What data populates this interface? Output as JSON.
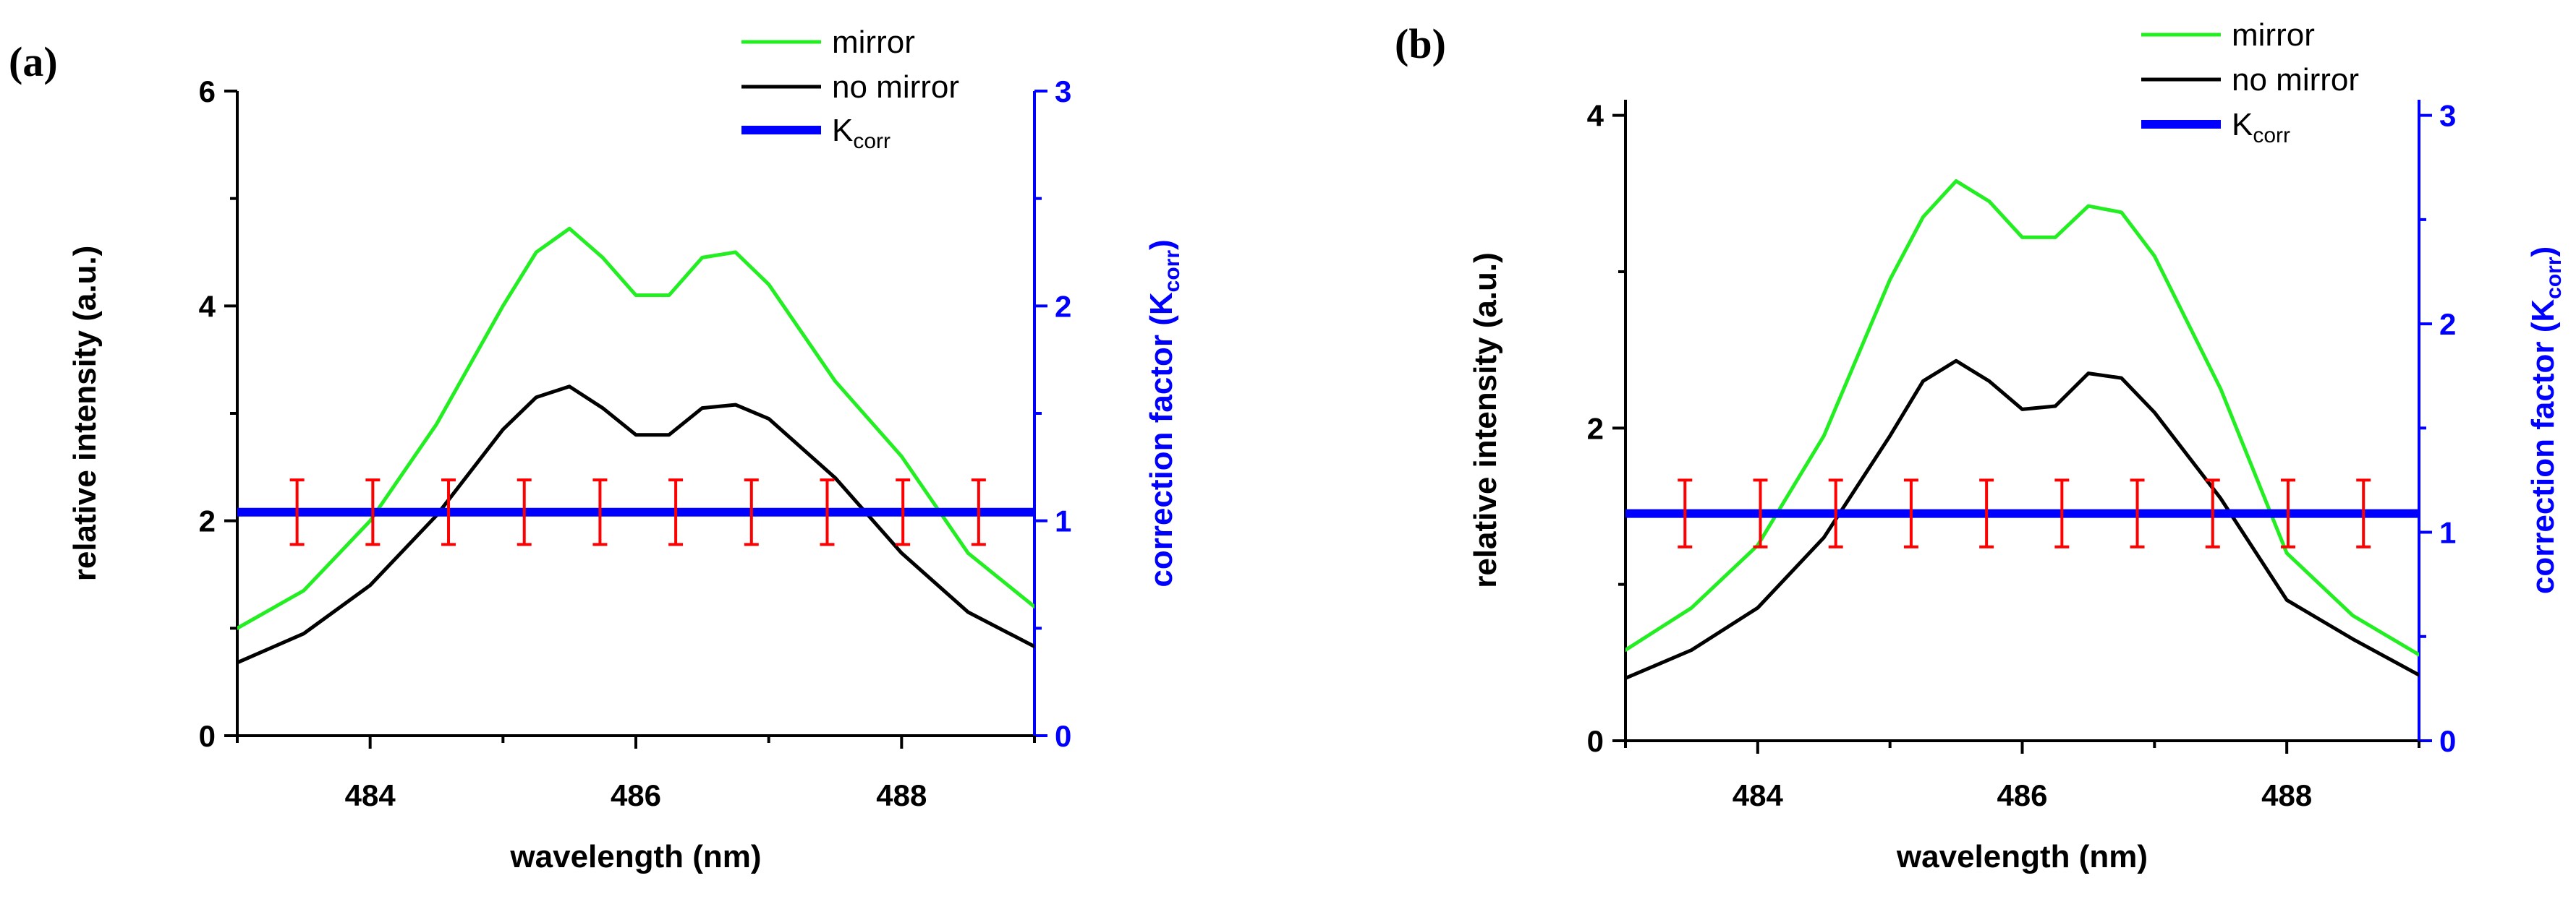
{
  "chart_data": [
    {
      "panel": "(a)",
      "type": "line",
      "xlabel": "wavelength (nm)",
      "ylabel": "relative intensity (a.u.)",
      "y2label_main": "correction factor (K",
      "y2label_sub": "corr",
      "y2label_end": ")",
      "xlim": [
        483,
        489
      ],
      "ylim": [
        0,
        6
      ],
      "y2lim": [
        0,
        3
      ],
      "xticks": [
        484,
        486,
        488
      ],
      "xtick_labels": [
        "484",
        "486",
        "488"
      ],
      "yticks": [
        0,
        2,
        4,
        6
      ],
      "ytick_labels": [
        "0",
        "2",
        "4",
        "6"
      ],
      "y2ticks": [
        0,
        1,
        2,
        3
      ],
      "y2tick_labels": [
        "0",
        "1",
        "2",
        "3"
      ],
      "legend": {
        "position": "top-right",
        "entries": [
          {
            "label": "mirror",
            "sub": "",
            "color": "#22ee22"
          },
          {
            "label": "no mirror",
            "sub": "",
            "color": "#000000"
          },
          {
            "label": "K",
            "sub": "corr",
            "color": "#0000ff"
          }
        ]
      },
      "series": [
        {
          "name": "mirror",
          "color": "#22ee22",
          "axis": "left",
          "x": [
            483.0,
            483.5,
            484.0,
            484.5,
            485.0,
            485.25,
            485.5,
            485.75,
            486.0,
            486.25,
            486.5,
            486.75,
            487.0,
            487.5,
            488.0,
            488.5,
            489.0
          ],
          "y": [
            1.0,
            1.35,
            2.0,
            2.9,
            4.0,
            4.5,
            4.72,
            4.45,
            4.1,
            4.1,
            4.45,
            4.5,
            4.2,
            3.3,
            2.6,
            1.7,
            1.2
          ]
        },
        {
          "name": "no mirror",
          "color": "#000000",
          "axis": "left",
          "x": [
            483.0,
            483.5,
            484.0,
            484.5,
            485.0,
            485.25,
            485.5,
            485.75,
            486.0,
            486.25,
            486.5,
            486.75,
            487.0,
            487.5,
            488.0,
            488.5,
            489.0
          ],
          "y": [
            0.68,
            0.95,
            1.4,
            2.05,
            2.85,
            3.15,
            3.25,
            3.05,
            2.8,
            2.8,
            3.05,
            3.08,
            2.95,
            2.4,
            1.7,
            1.15,
            0.83
          ]
        },
        {
          "name": "Kcorr",
          "color": "#0000ff",
          "axis": "right",
          "x": [
            483.0,
            489.0
          ],
          "y": [
            1.04,
            1.04
          ]
        }
      ],
      "error_bars": {
        "color": "#ff0000",
        "axis": "right",
        "x": [
          483.45,
          484.02,
          484.59,
          485.16,
          485.73,
          486.3,
          486.87,
          487.44,
          488.01,
          488.58
        ],
        "y": 1.04,
        "err": 0.15
      }
    },
    {
      "panel": "(b)",
      "type": "line",
      "xlabel": "wavelength (nm)",
      "ylabel": "relative intensity (a.u.)",
      "y2label_main": "correction factor (K",
      "y2label_sub": "corr",
      "y2label_end": ")",
      "xlim": [
        483,
        489
      ],
      "ylim": [
        0,
        4.1
      ],
      "y2lim": [
        0,
        3.075
      ],
      "xticks": [
        484,
        486,
        488
      ],
      "xtick_labels": [
        "484",
        "486",
        "488"
      ],
      "yticks": [
        0,
        2,
        4
      ],
      "ytick_labels": [
        "0",
        "2",
        "4"
      ],
      "y2ticks": [
        0,
        1,
        2,
        3
      ],
      "y2tick_labels": [
        "0",
        "1",
        "2",
        "3"
      ],
      "legend": {
        "position": "top-right",
        "entries": [
          {
            "label": "mirror",
            "sub": "",
            "color": "#22ee22"
          },
          {
            "label": "no mirror",
            "sub": "",
            "color": "#000000"
          },
          {
            "label": "K",
            "sub": "corr",
            "color": "#0000ff"
          }
        ]
      },
      "series": [
        {
          "name": "mirror",
          "color": "#22ee22",
          "axis": "left",
          "x": [
            483.0,
            483.5,
            484.0,
            484.5,
            485.0,
            485.25,
            485.5,
            485.75,
            486.0,
            486.25,
            486.5,
            486.75,
            487.0,
            487.5,
            488.0,
            488.5,
            489.0
          ],
          "y": [
            0.58,
            0.85,
            1.25,
            1.95,
            2.95,
            3.35,
            3.58,
            3.45,
            3.22,
            3.22,
            3.42,
            3.38,
            3.1,
            2.25,
            1.2,
            0.8,
            0.55
          ]
        },
        {
          "name": "no mirror",
          "color": "#000000",
          "axis": "left",
          "x": [
            483.0,
            483.5,
            484.0,
            484.5,
            485.0,
            485.25,
            485.5,
            485.75,
            486.0,
            486.25,
            486.5,
            486.75,
            487.0,
            487.5,
            488.0,
            488.5,
            489.0
          ],
          "y": [
            0.4,
            0.58,
            0.85,
            1.3,
            1.95,
            2.3,
            2.43,
            2.3,
            2.12,
            2.14,
            2.35,
            2.32,
            2.1,
            1.55,
            0.9,
            0.65,
            0.42
          ]
        },
        {
          "name": "Kcorr",
          "color": "#0000ff",
          "axis": "right",
          "x": [
            483.0,
            489.0
          ],
          "y": [
            1.09,
            1.09
          ]
        }
      ],
      "error_bars": {
        "color": "#ff0000",
        "axis": "right",
        "x": [
          483.45,
          484.02,
          484.59,
          485.16,
          485.73,
          486.3,
          486.87,
          487.44,
          488.01,
          488.58
        ],
        "y": 1.09,
        "err": 0.16
      }
    }
  ]
}
